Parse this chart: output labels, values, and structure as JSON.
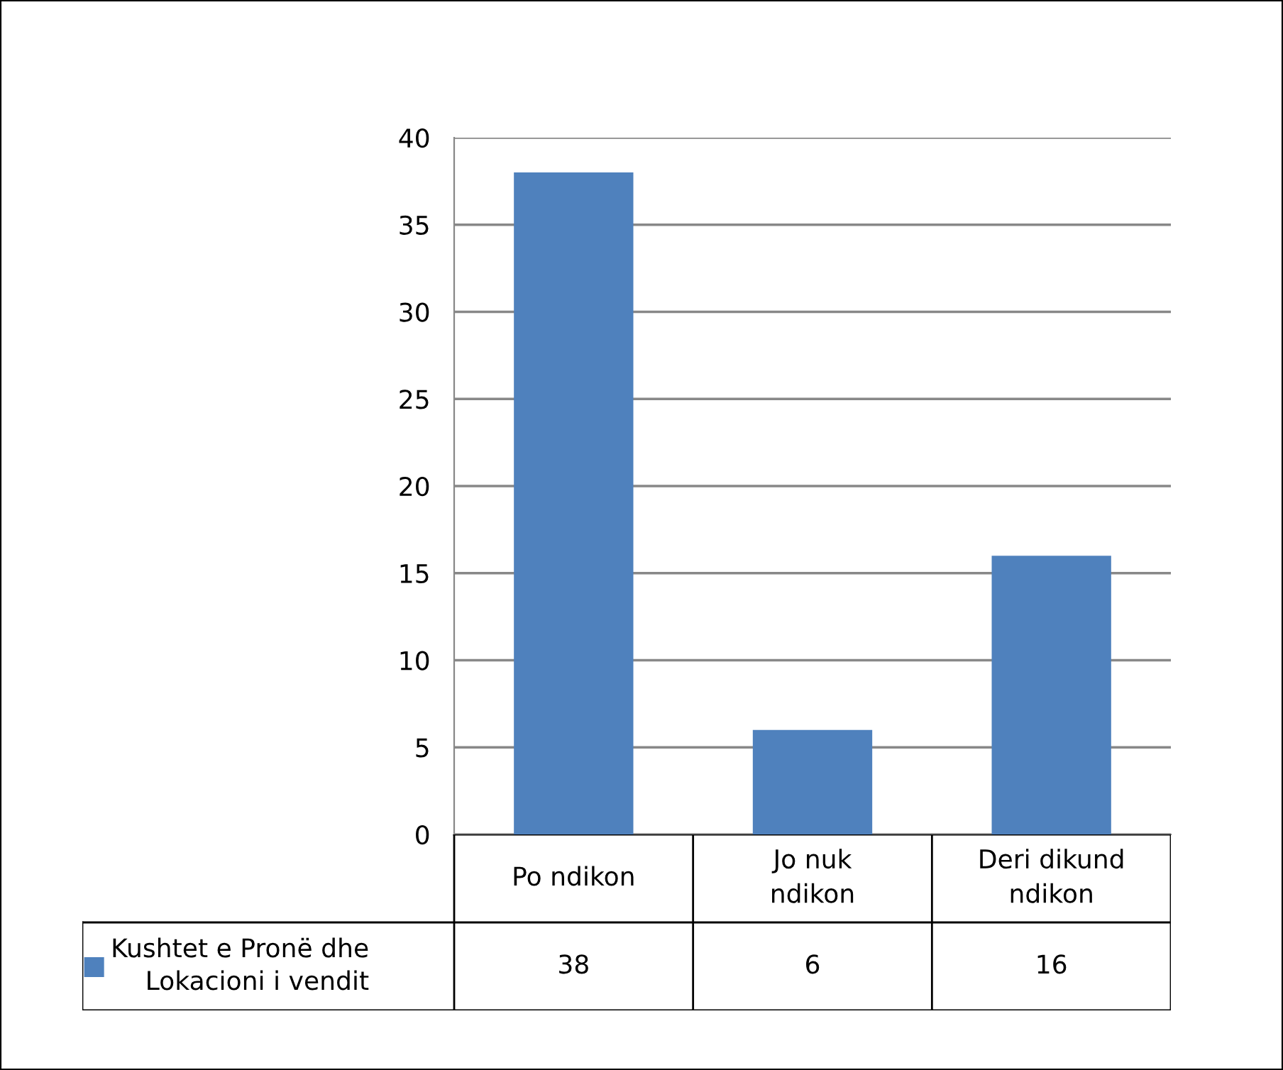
{
  "chart_data": {
    "type": "bar",
    "categories": [
      "Po ndikon",
      "Jo nuk\nndikon",
      "Deri dikund\nndikon"
    ],
    "series": [
      {
        "name": "Kushtet e Pronë dhe\nLokacioni i vendit",
        "color": "#4f81bd",
        "values": [
          38,
          6,
          16
        ]
      }
    ],
    "ylim": [
      0,
      40
    ],
    "yticks": [
      0,
      5,
      10,
      15,
      20,
      25,
      30,
      35,
      40
    ],
    "grid": "y",
    "data_labels": true,
    "legend": "bottom"
  }
}
